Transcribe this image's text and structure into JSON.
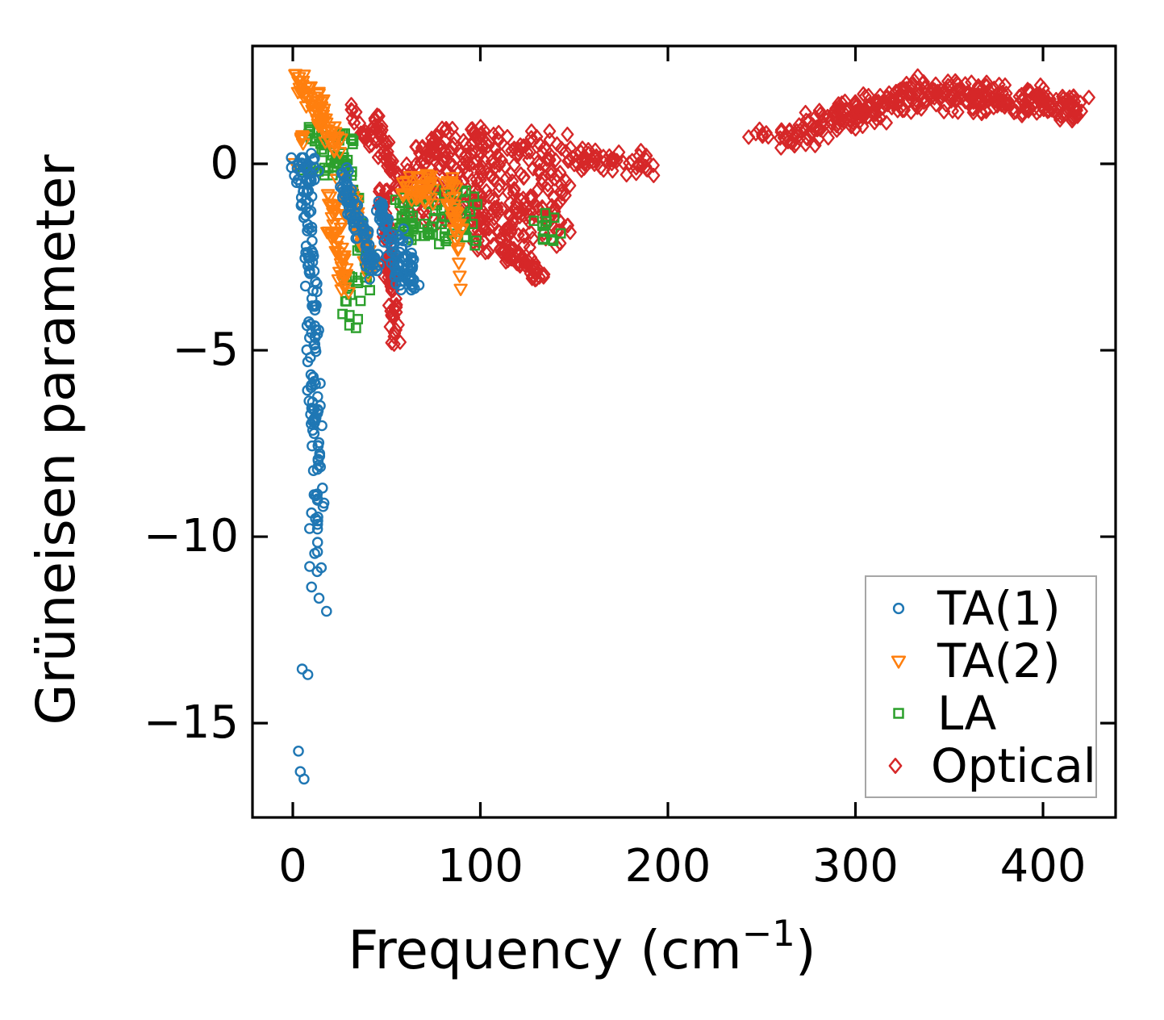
{
  "figure": {
    "background": "#ffffff",
    "spine_color": "#000000",
    "legend_border_color": "#a6a6a6"
  },
  "chart_data": {
    "type": "scatter",
    "title": "",
    "xlabel": {
      "main": "Frequency (cm",
      "sup": "−1",
      "end": ")"
    },
    "ylabel": "Grüneisen parameter",
    "xlim": [
      -21.5,
      438.7
    ],
    "ylim": [
      -17.53,
      3.16
    ],
    "grid": false,
    "tick_direction": "in",
    "ticks_all_sides": true,
    "x_ticks": [
      {
        "value": 0,
        "label": "0"
      },
      {
        "value": 100,
        "label": "100"
      },
      {
        "value": 200,
        "label": "200"
      },
      {
        "value": 300,
        "label": "300"
      },
      {
        "value": 400,
        "label": "400"
      }
    ],
    "y_ticks": [
      {
        "value": 0,
        "label": "0"
      },
      {
        "value": -5,
        "label": "−5"
      },
      {
        "value": -10,
        "label": "−10"
      },
      {
        "value": -15,
        "label": "−15"
      }
    ],
    "legend": {
      "position": "lower right",
      "labels": [
        "TA(1)",
        "TA(2)",
        "LA",
        "Optical"
      ]
    },
    "draw_order": [
      3,
      2,
      1,
      0
    ],
    "series": [
      {
        "name": "TA(1)",
        "marker": "circle",
        "color": "#1f77b4",
        "seed": 11,
        "clusters": [
          {
            "mode": "uniform",
            "n": 30,
            "x": [
              -2,
              14
            ],
            "y": [
              -0.55,
              0.3
            ]
          },
          {
            "mode": "diag",
            "n": 65,
            "x": [
              7,
              12
            ],
            "y": [
              -0.5,
              -4.8
            ],
            "jx": 4,
            "jy": 0.8
          },
          {
            "mode": "diag",
            "n": 55,
            "x": [
              10,
              15
            ],
            "y": [
              -4.8,
              -9.2
            ],
            "jx": 4,
            "jy": 0.7
          },
          {
            "mode": "diag",
            "n": 14,
            "x": [
              11,
              14
            ],
            "y": [
              -9.2,
              -10.6
            ],
            "jx": 3.5,
            "jy": 0.5
          },
          {
            "mode": "points",
            "pts": [
              [
                9,
                -10.8
              ],
              [
                10,
                -11.35
              ],
              [
                14,
                -11.65
              ],
              [
                18,
                -12.0
              ],
              [
                5,
                -13.55
              ],
              [
                8,
                -13.7
              ],
              [
                3,
                -15.75
              ],
              [
                4,
                -16.3
              ],
              [
                6,
                -16.5
              ]
            ]
          },
          {
            "mode": "diag",
            "n": 90,
            "x": [
              26,
              44
            ],
            "y": [
              -0.35,
              -2.95
            ],
            "jx": 3.5,
            "jy": 0.5
          },
          {
            "mode": "diag",
            "n": 60,
            "x": [
              46,
              57
            ],
            "y": [
              -1.1,
              -3.05
            ],
            "jx": 3,
            "jy": 0.5
          },
          {
            "mode": "diag",
            "n": 38,
            "x": [
              58,
              66
            ],
            "y": [
              -2.1,
              -3.35
            ],
            "jx": 3,
            "jy": 0.45
          }
        ]
      },
      {
        "name": "TA(2)",
        "marker": "triangle-down",
        "color": "#ff7f0e",
        "seed": 22,
        "clusters": [
          {
            "mode": "diag",
            "n": 72,
            "x": [
              4,
              24
            ],
            "y": [
              2.25,
              0.55
            ],
            "jx": 5,
            "jy": 0.4
          },
          {
            "mode": "uniform",
            "n": 6,
            "x": [
              4,
              10
            ],
            "y": [
              0.5,
              0.78
            ]
          },
          {
            "mode": "points",
            "pts": [
              [
                1,
                0.02
              ]
            ]
          },
          {
            "mode": "diag",
            "n": 45,
            "x": [
              19,
              28
            ],
            "y": [
              -0.55,
              -3.3
            ],
            "jx": 4,
            "jy": 0.55
          },
          {
            "mode": "diag",
            "n": 42,
            "x": [
              26,
              42
            ],
            "y": [
              -0.5,
              -2.8
            ],
            "jx": 4,
            "jy": 0.55
          },
          {
            "mode": "uniform",
            "n": 36,
            "x": [
              58,
              76
            ],
            "y": [
              -1.1,
              -0.25
            ]
          },
          {
            "mode": "diag",
            "n": 30,
            "x": [
              83,
              89
            ],
            "y": [
              -0.5,
              -2.0
            ],
            "jx": 3,
            "jy": 0.45
          },
          {
            "mode": "points",
            "pts": [
              [
                86,
                -1.75
              ],
              [
                87,
                -2.05
              ],
              [
                88,
                -2.3
              ],
              [
                88.5,
                -2.65
              ],
              [
                89,
                -3.0
              ],
              [
                89.5,
                -3.35
              ]
            ]
          }
        ]
      },
      {
        "name": "LA",
        "marker": "square",
        "color": "#2ca02c",
        "seed": 33,
        "clusters": [
          {
            "mode": "diag",
            "n": 35,
            "x": [
              8,
              32
            ],
            "y": [
              0.85,
              -0.3
            ],
            "jx": 3,
            "jy": 0.35
          },
          {
            "mode": "uniform",
            "n": 12,
            "x": [
              5,
              29
            ],
            "y": [
              -0.35,
              -0.05
            ]
          },
          {
            "mode": "uniform",
            "n": 10,
            "x": [
              22,
              33
            ],
            "y": [
              0.45,
              0.95
            ]
          },
          {
            "mode": "diag",
            "n": 42,
            "x": [
              33,
              40
            ],
            "y": [
              -0.85,
              -3.0
            ],
            "jx": 3,
            "jy": 0.55
          },
          {
            "mode": "uniform",
            "n": 18,
            "x": [
              26,
              40
            ],
            "y": [
              -4.45,
              -2.95
            ]
          },
          {
            "mode": "uniform",
            "n": 30,
            "x": [
              54,
              66
            ],
            "y": [
              -2.05,
              -0.85
            ]
          },
          {
            "mode": "uniform",
            "n": 48,
            "x": [
              69,
              99
            ],
            "y": [
              -2.2,
              -0.7
            ]
          },
          {
            "mode": "uniform",
            "n": 12,
            "x": [
              128,
              143
            ],
            "y": [
              -2.1,
              -1.3
            ]
          }
        ]
      },
      {
        "name": "Optical",
        "marker": "diamond",
        "color": "#d62728",
        "seed": 44,
        "clusters": [
          {
            "mode": "diag",
            "n": 16,
            "x": [
              31,
              41
            ],
            "y": [
              1.45,
              0.5
            ],
            "jx": 2.5,
            "jy": 0.3
          },
          {
            "mode": "diag",
            "n": 55,
            "x": [
              42,
              58
            ],
            "y": [
              1.2,
              -0.7
            ],
            "jx": 3.5,
            "jy": 0.5
          },
          {
            "mode": "diag",
            "n": 85,
            "x": [
              48,
              55
            ],
            "y": [
              -0.8,
              -4.65
            ],
            "jx": 3,
            "jy": 0.6
          },
          {
            "mode": "uniform",
            "n": 135,
            "x": [
              58,
              102
            ],
            "y": [
              -1.6,
              0.5
            ]
          },
          {
            "mode": "uniform",
            "n": 35,
            "x": [
              70,
              102
            ],
            "y": [
              0.3,
              1.0
            ]
          },
          {
            "mode": "uniform",
            "n": 215,
            "x": [
              95,
              148
            ],
            "y": [
              -2.4,
              0.9
            ]
          },
          {
            "mode": "diag",
            "n": 45,
            "x": [
              112,
              132
            ],
            "y": [
              -2.2,
              -3.05
            ],
            "jx": 6,
            "jy": 0.35
          },
          {
            "mode": "diag",
            "n": 55,
            "x": [
              148,
              193
            ],
            "y": [
              0.15,
              -0.05
            ],
            "jx": 3,
            "jy": 0.38
          },
          {
            "mode": "uniform",
            "n": 9,
            "x": [
              243,
              262
            ],
            "y": [
              0.65,
              0.95
            ]
          },
          {
            "mode": "diag",
            "n": 45,
            "x": [
              262,
              288
            ],
            "y": [
              0.75,
              1.15
            ],
            "jx": 6,
            "jy": 0.55
          },
          {
            "mode": "diag",
            "n": 115,
            "x": [
              288,
              335
            ],
            "y": [
              1.15,
              1.95
            ],
            "jx": 8,
            "jy": 0.5
          },
          {
            "mode": "diag",
            "n": 200,
            "x": [
              335,
              421
            ],
            "y": [
              1.85,
              1.55
            ],
            "jx": 6,
            "jy": 0.5
          }
        ]
      }
    ]
  }
}
